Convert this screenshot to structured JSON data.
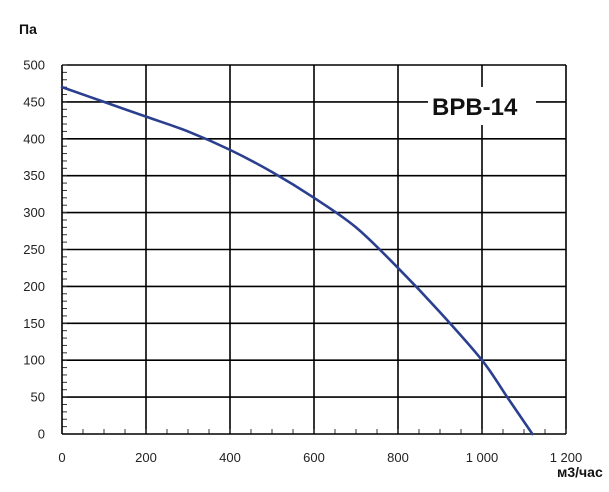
{
  "chart_data": {
    "type": "line",
    "title": "",
    "model_label": "BPB-14",
    "xlabel": "м3/час",
    "ylabel": "Па",
    "xlim": [
      0,
      1200
    ],
    "ylim": [
      0,
      500
    ],
    "x_ticks": [
      0,
      200,
      400,
      600,
      800,
      1000,
      1200
    ],
    "x_tick_labels": [
      "0",
      "200",
      "400",
      "600",
      "800",
      "1 000",
      "1 200"
    ],
    "y_ticks": [
      0,
      50,
      100,
      150,
      200,
      250,
      300,
      350,
      400,
      450,
      500
    ],
    "y_tick_labels": [
      "0",
      "50",
      "100",
      "150",
      "200",
      "250",
      "300",
      "350",
      "400",
      "450",
      "500"
    ],
    "grid": true,
    "series": [
      {
        "color": "#2b3f8f",
        "x": [
          0,
          100,
          200,
          300,
          400,
          500,
          600,
          700,
          800,
          900,
          1000,
          1060,
          1120
        ],
        "y": [
          470,
          450,
          430,
          410,
          385,
          355,
          320,
          280,
          225,
          165,
          100,
          50,
          0
        ]
      }
    ]
  }
}
